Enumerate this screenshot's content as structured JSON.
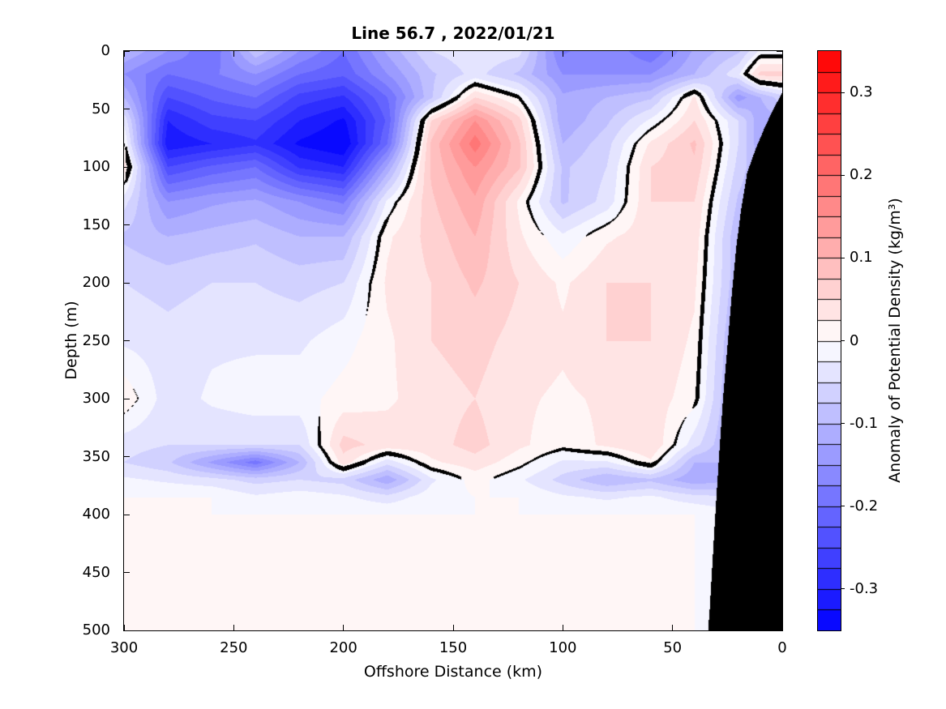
{
  "title": "Line 56.7 , 2022/01/21",
  "background_color": "#FFFFFF",
  "axes": {
    "x": {
      "label": "Offshore Distance (km)",
      "ticks": [
        300,
        250,
        200,
        150,
        100,
        50,
        0
      ],
      "min": 0,
      "max": 300,
      "reversed": true
    },
    "y": {
      "label": "Depth (m)",
      "ticks": [
        0,
        50,
        100,
        150,
        200,
        250,
        300,
        350,
        400,
        450,
        500
      ],
      "min": 0,
      "max": 500,
      "reversed": true
    }
  },
  "colorbar": {
    "label": "Anomaly of Potential Density (kg/m³)",
    "ticks": [
      0.3,
      0.2,
      0.1,
      0,
      -0.1,
      -0.2,
      -0.3
    ],
    "min": -0.35,
    "max": 0.35,
    "step": 0.025,
    "positive_color": "#FF0000",
    "negative_color": "#0000FF",
    "zero_color": "#FFFFFF",
    "segment_border_color": "#000000"
  },
  "chart_data": {
    "type": "heatmap",
    "title": "Line 56.7 , 2022/01/21",
    "xlabel": "Offshore Distance (km)",
    "ylabel": "Depth (m)",
    "colorbar_label": "Anomaly of Potential Density (kg/m³)",
    "contour_interval": 0.025,
    "clim": [
      -0.35,
      0.35
    ],
    "zero_contour_color": "#000000",
    "land_mask_color": "#000000",
    "x_km": [
      300,
      280,
      260,
      240,
      220,
      200,
      180,
      160,
      140,
      120,
      100,
      80,
      60,
      40,
      20,
      10,
      0
    ],
    "depth_m": [
      0,
      20,
      40,
      60,
      80,
      100,
      130,
      160,
      200,
      250,
      300,
      340,
      355,
      370,
      385,
      400,
      450,
      500
    ],
    "anomaly_kg_m3": [
      [
        -0.1,
        -0.15,
        -0.2,
        -0.08,
        -0.15,
        -0.2,
        -0.12,
        -0.05,
        -0.03,
        -0.04,
        -0.18,
        -0.15,
        -0.2,
        -0.12,
        -0.08,
        -0.02,
        -0.02
      ],
      [
        -0.15,
        -0.2,
        -0.18,
        -0.15,
        -0.2,
        -0.22,
        -0.15,
        -0.08,
        -0.04,
        -0.08,
        -0.15,
        -0.15,
        -0.15,
        -0.1,
        -0.03,
        0.06,
        0.06
      ],
      [
        -0.1,
        -0.25,
        -0.22,
        -0.2,
        -0.26,
        -0.28,
        -0.2,
        -0.08,
        0.05,
        0.0,
        -0.12,
        -0.1,
        -0.08,
        0.03,
        -0.14,
        -0.1,
        -0.06
      ],
      [
        -0.03,
        -0.3,
        -0.26,
        -0.25,
        -0.3,
        -0.33,
        -0.22,
        0.05,
        0.15,
        0.06,
        -0.12,
        -0.08,
        -0.02,
        0.05,
        -0.05,
        -0.12,
        -0.1
      ],
      [
        0.0,
        -0.32,
        -0.3,
        -0.28,
        -0.33,
        -0.35,
        -0.2,
        0.08,
        0.19,
        0.08,
        -0.1,
        -0.06,
        0.03,
        0.08,
        -0.05,
        -0.12,
        -0.08
      ],
      [
        0.04,
        -0.25,
        -0.22,
        -0.2,
        -0.28,
        -0.3,
        -0.12,
        0.08,
        0.15,
        0.08,
        -0.08,
        -0.05,
        0.05,
        0.07,
        -0.06,
        -0.1,
        -0.08
      ],
      [
        -0.04,
        -0.15,
        -0.13,
        -0.12,
        -0.15,
        -0.18,
        -0.02,
        0.07,
        0.12,
        0.02,
        -0.08,
        -0.04,
        0.05,
        0.05,
        -0.08,
        -0.1,
        -0.08
      ],
      [
        -0.08,
        -0.1,
        -0.09,
        -0.08,
        -0.1,
        -0.1,
        0.02,
        0.06,
        0.1,
        0.03,
        -0.02,
        0.02,
        0.04,
        0.04,
        -0.1,
        -0.1,
        -0.08
      ],
      [
        -0.05,
        -0.06,
        -0.05,
        -0.05,
        -0.06,
        -0.05,
        0.03,
        0.05,
        0.08,
        0.05,
        0.02,
        0.05,
        0.05,
        0.03,
        -0.1,
        -0.1,
        -0.08
      ],
      [
        -0.03,
        -0.04,
        -0.03,
        -0.03,
        -0.03,
        -0.01,
        0.02,
        0.05,
        0.06,
        0.04,
        0.03,
        0.05,
        0.05,
        0.02,
        -0.12,
        -0.1,
        -0.08
      ],
      [
        0.02,
        -0.04,
        -0.02,
        -0.01,
        -0.01,
        0.01,
        0.02,
        0.04,
        0.05,
        0.03,
        0.02,
        0.03,
        0.04,
        0.01,
        -0.13,
        -0.1,
        -0.08
      ],
      [
        -0.04,
        -0.05,
        -0.05,
        -0.05,
        -0.05,
        0.06,
        0.04,
        0.04,
        0.06,
        0.03,
        0.01,
        0.03,
        0.05,
        -0.04,
        -0.12,
        -0.1,
        -0.08
      ],
      [
        -0.05,
        -0.07,
        -0.13,
        -0.19,
        -0.1,
        0.04,
        -0.04,
        0.02,
        0.04,
        0.01,
        -0.03,
        -0.03,
        0.02,
        -0.1,
        -0.1,
        -0.1,
        -0.08
      ],
      [
        -0.02,
        -0.03,
        -0.04,
        -0.06,
        -0.05,
        -0.06,
        -0.12,
        -0.03,
        0.01,
        -0.02,
        -0.06,
        -0.1,
        -0.08,
        -0.12,
        -0.1,
        -0.1,
        -0.08
      ],
      [
        0.0,
        0.0,
        0.0,
        -0.02,
        -0.01,
        -0.02,
        -0.04,
        -0.01,
        0.0,
        0.0,
        -0.02,
        -0.03,
        -0.02,
        -0.04,
        -0.05,
        -0.05,
        -0.04
      ],
      [
        0.0,
        0.0,
        0.0,
        0.0,
        0.0,
        0.0,
        0.0,
        0.0,
        0.0,
        0.0,
        0.0,
        0.0,
        0.0,
        0.0,
        -0.02,
        -0.02,
        -0.02
      ],
      [
        0.0,
        0.0,
        0.0,
        0.0,
        0.0,
        0.0,
        0.0,
        0.0,
        0.0,
        0.0,
        0.0,
        0.0,
        0.0,
        0.0,
        -0.01,
        -0.01,
        -0.01
      ],
      [
        0.0,
        0.0,
        0.0,
        0.0,
        0.0,
        0.0,
        0.0,
        0.0,
        0.0,
        0.0,
        0.0,
        0.0,
        0.0,
        0.0,
        0.0,
        0.0,
        0.0
      ]
    ],
    "seafloor_km_depth": [
      [
        0,
        36
      ],
      [
        4,
        50
      ],
      [
        8,
        66
      ],
      [
        12,
        84
      ],
      [
        16,
        105
      ],
      [
        19,
        140
      ],
      [
        21,
        170
      ],
      [
        23,
        210
      ],
      [
        25,
        255
      ],
      [
        27,
        300
      ],
      [
        29,
        355
      ],
      [
        31,
        415
      ],
      [
        33,
        480
      ],
      [
        33.8,
        500
      ],
      [
        35,
        560
      ]
    ]
  }
}
